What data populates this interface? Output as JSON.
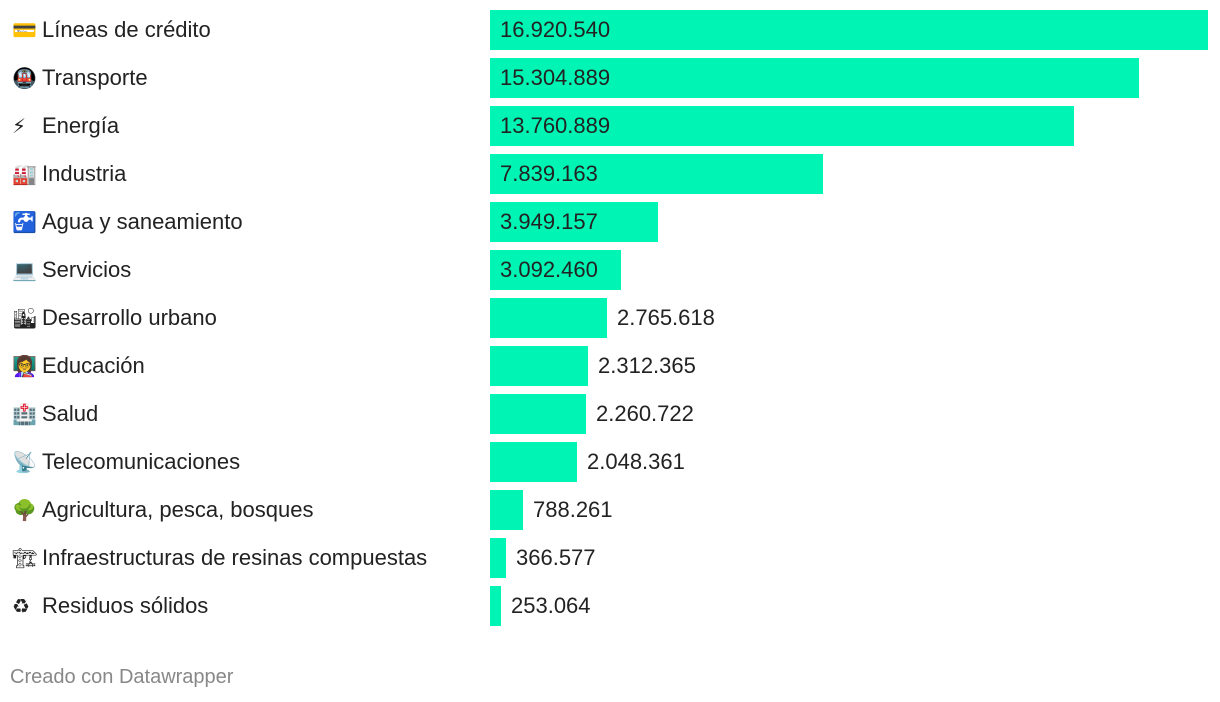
{
  "chart_data": {
    "type": "bar",
    "orientation": "horizontal",
    "categories": [
      {
        "label": "Líneas de crédito",
        "icon": "💳",
        "icon_name": "credit-card-icon"
      },
      {
        "label": "Transporte",
        "icon": "🚇",
        "icon_name": "metro-icon"
      },
      {
        "label": "Energía",
        "icon": "⚡",
        "icon_name": "lightning-icon"
      },
      {
        "label": "Industria",
        "icon": "🏭",
        "icon_name": "factory-icon"
      },
      {
        "label": "Agua y saneamiento",
        "icon": "🚰",
        "icon_name": "water-tap-icon"
      },
      {
        "label": "Servicios",
        "icon": "💻",
        "icon_name": "laptop-icon"
      },
      {
        "label": "Desarrollo urbano",
        "icon": "🏙",
        "icon_name": "cityscape-icon"
      },
      {
        "label": "Educación",
        "icon": "👩‍🏫",
        "icon_name": "teacher-icon"
      },
      {
        "label": "Salud",
        "icon": "🏥",
        "icon_name": "hospital-icon"
      },
      {
        "label": "Telecomunicaciones",
        "icon": "📡",
        "icon_name": "satellite-dish-icon"
      },
      {
        "label": "Agricultura, pesca, bosques",
        "icon": "🌳",
        "icon_name": "tree-icon"
      },
      {
        "label": "Infraestructuras de resinas compuestas",
        "icon": "🏗",
        "icon_name": "crane-icon"
      },
      {
        "label": "Residuos sólidos",
        "icon": "♻",
        "icon_name": "recycle-icon"
      }
    ],
    "values": [
      16920540,
      15304889,
      13760889,
      7839163,
      3949157,
      3092460,
      2765618,
      2312365,
      2260722,
      2048361,
      788261,
      366577,
      253064
    ],
    "value_labels": [
      "16.920.540",
      "15.304.889",
      "13.760.889",
      "7.839.163",
      "3.949.157",
      "3.092.460",
      "2.765.618",
      "2.312.365",
      "2.260.722",
      "2.048.361",
      "788.261",
      "366.577",
      "253.064"
    ],
    "xlim": [
      0,
      16920540
    ],
    "bar_color": "#00f5b4",
    "title": "",
    "xlabel": "",
    "ylabel": ""
  },
  "footer": {
    "credit": "Creado con Datawrapper"
  }
}
